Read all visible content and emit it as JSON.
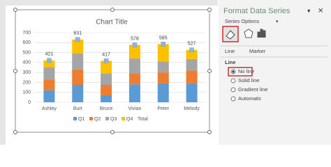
{
  "chart_data": {
    "type": "bar",
    "stacked": true,
    "title": "Chart Title",
    "categories": [
      "Ashley",
      "Burt",
      "Bruce",
      "Vivian",
      "Peter",
      "Melody"
    ],
    "series": [
      {
        "name": "Q1",
        "color": "#5b9bd5",
        "values": [
          120,
          175,
          70,
          180,
          190,
          190
        ]
      },
      {
        "name": "Q2",
        "color": "#ed7d31",
        "values": [
          110,
          155,
          105,
          110,
          110,
          130
        ]
      },
      {
        "name": "Q3",
        "color": "#a5a5a5",
        "values": [
          120,
          160,
          112,
          150,
          110,
          115
        ]
      },
      {
        "name": "Q4",
        "color": "#ffc000",
        "values": [
          71,
          141,
          130,
          138,
          175,
          92
        ]
      },
      {
        "name": "Total",
        "color": "#8fb5e0",
        "line": false,
        "values": [
          421,
          631,
          417,
          578,
          585,
          527
        ]
      }
    ],
    "ylim": [
      0,
      700
    ],
    "yticks": [
      0,
      100,
      200,
      300,
      400,
      500,
      600,
      700
    ],
    "grid": true,
    "legend": "bottom"
  },
  "ui": {
    "pane": {
      "title": "Format Data Series",
      "dropdown": "Series Options",
      "tabs": [
        "Line",
        "Marker"
      ],
      "section": "Line",
      "options": [
        "No line",
        "Solid line",
        "Gradient line",
        "Automatic"
      ],
      "selected": 0
    }
  }
}
